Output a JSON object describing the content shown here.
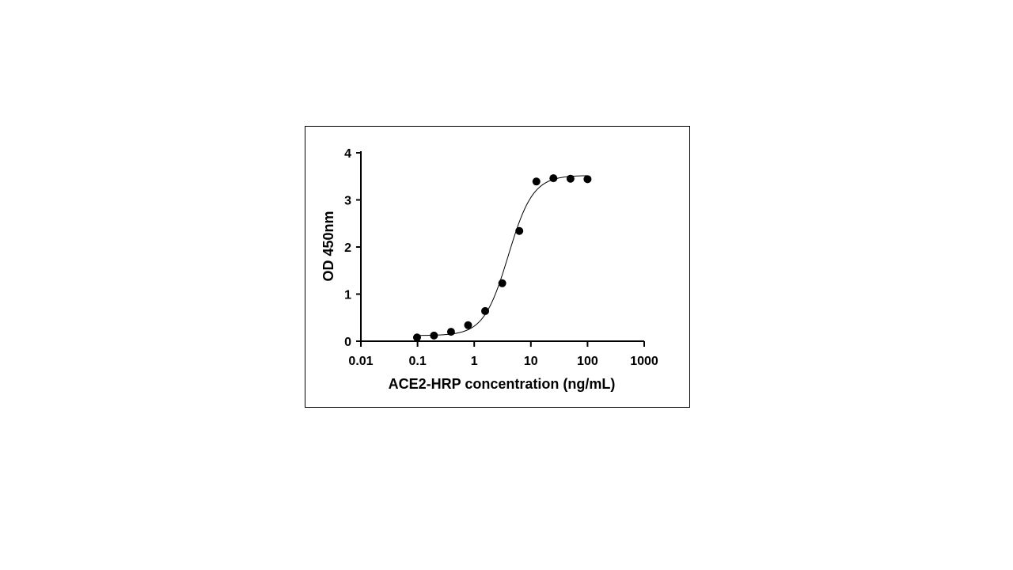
{
  "chart_data": {
    "type": "scatter",
    "title": "",
    "xlabel": "ACE2-HRP concentration (ng/mL)",
    "ylabel": "OD 450nm",
    "x_scale": "log",
    "xlim": [
      0.01,
      1000
    ],
    "ylim": [
      0,
      4
    ],
    "x_tick_labels": [
      "0.01",
      "0.1",
      "1",
      "10",
      "100",
      "1000"
    ],
    "y_tick_labels": [
      "0",
      "1",
      "2",
      "3",
      "4"
    ],
    "grid": false,
    "legend": "none",
    "marker_color": "#000000",
    "series": [
      {
        "x": [
          0.098,
          0.195,
          0.39,
          0.78,
          1.56,
          3.125,
          6.25,
          12.5,
          25,
          50,
          100
        ],
        "y": [
          0.08,
          0.12,
          0.2,
          0.34,
          0.64,
          1.23,
          2.34,
          3.39,
          3.46,
          3.45,
          3.44
        ]
      }
    ],
    "fit": {
      "model": "4PL",
      "bottom": 0.12,
      "top": 3.52,
      "ec50": 4.0,
      "hill": 2.0,
      "x_range": [
        0.098,
        100
      ]
    }
  }
}
